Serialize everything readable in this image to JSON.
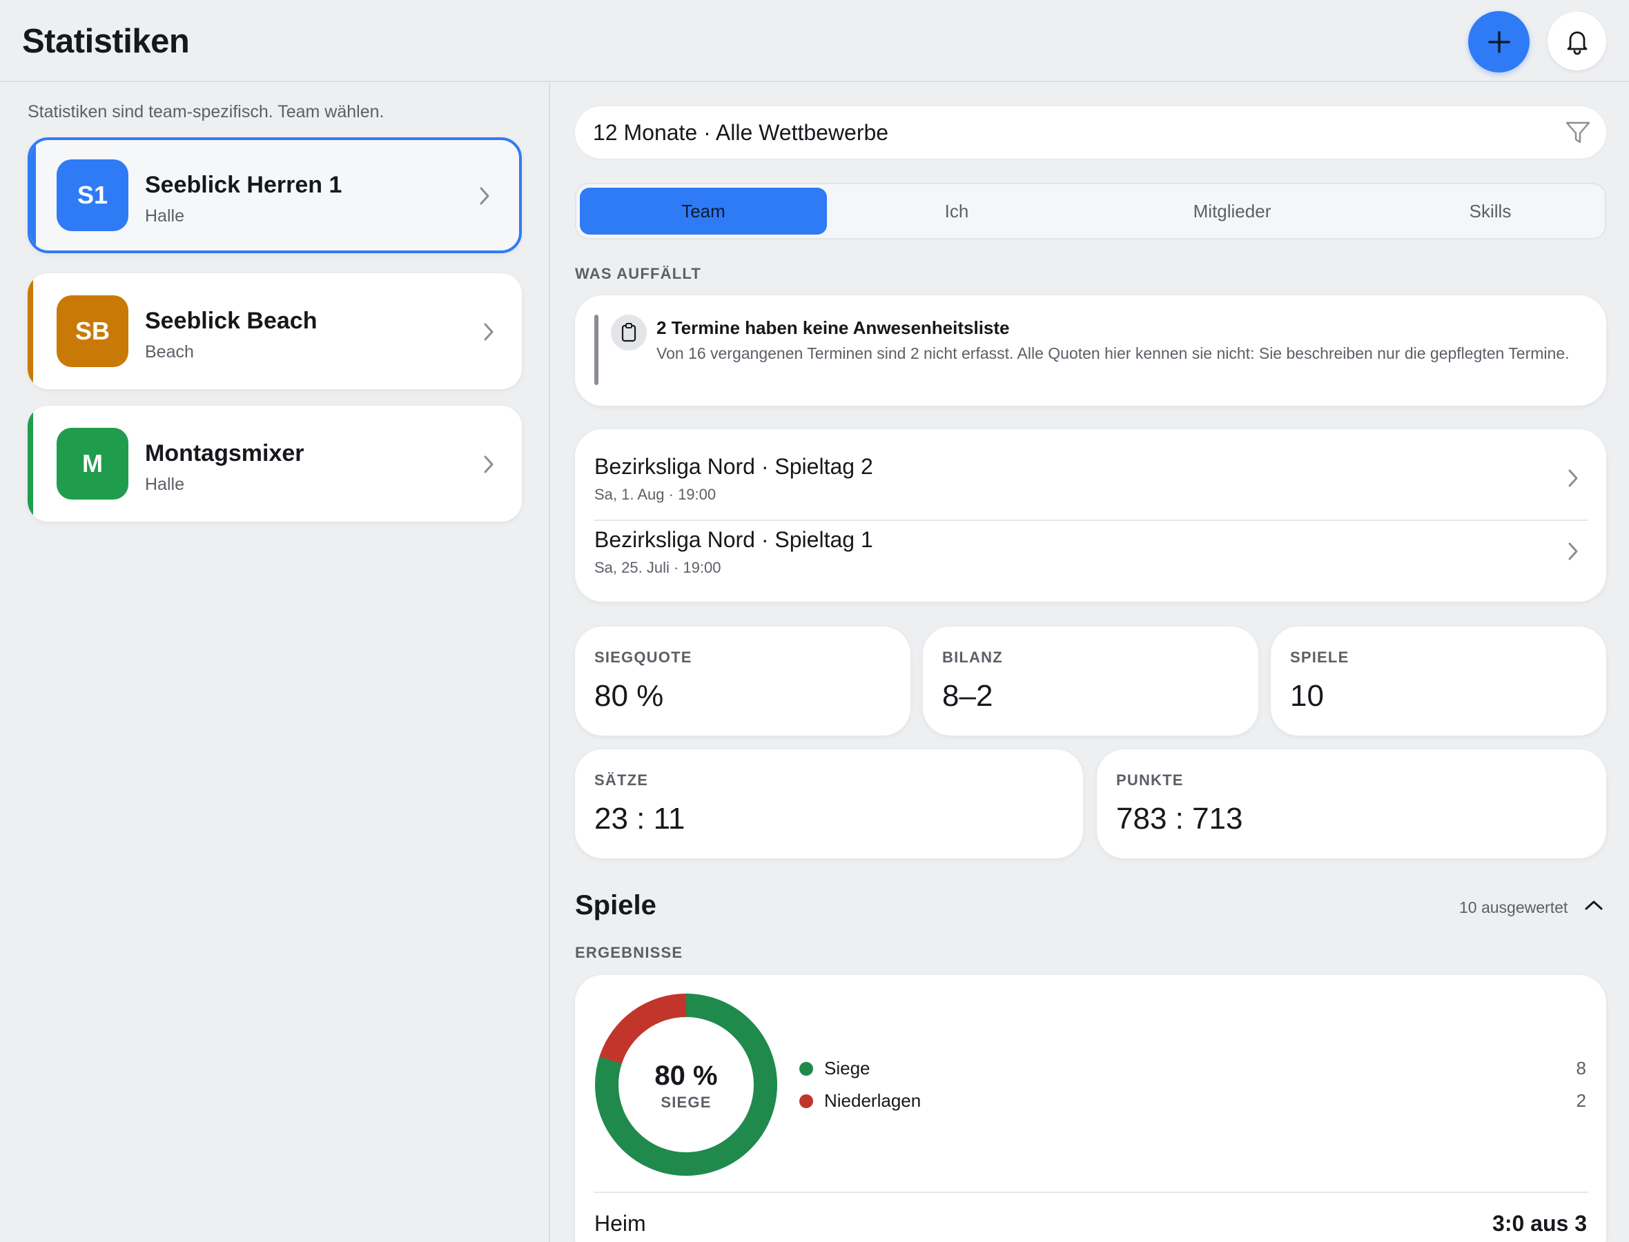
{
  "header": {
    "title": "Statistiken",
    "add_icon": "plus-icon",
    "bell_icon": "bell-icon",
    "accent": "#2f7bf6"
  },
  "sidebar": {
    "hint": "Statistiken sind team-spezifisch. Team wählen.",
    "teams": [
      {
        "initials": "S1",
        "name": "Seeblick Herren 1",
        "type": "Halle",
        "color": "#2f7bf6",
        "selected": true
      },
      {
        "initials": "SB",
        "name": "Seeblick Beach",
        "type": "Beach",
        "color": "#c97a06",
        "selected": false
      },
      {
        "initials": "M",
        "name": "Montagsmixer",
        "type": "Halle",
        "color": "#1f9d4c",
        "selected": false
      }
    ]
  },
  "filter": {
    "text": "12 Monate · Alle Wettbewerbe",
    "icon": "filter-icon"
  },
  "tabs": [
    {
      "label": "Team",
      "active": true
    },
    {
      "label": "Ich",
      "active": false
    },
    {
      "label": "Mitglieder",
      "active": false
    },
    {
      "label": "Skills",
      "active": false
    }
  ],
  "highlights": {
    "label": "WAS AUFFÄLLT",
    "notice": {
      "icon": "clipboard-icon",
      "title": "2 Termine haben keine Anwesenheitsliste",
      "text": "Von 16 vergangenen Terminen sind 2 nicht erfasst. Alle Quoten hier kennen sie nicht: Sie beschreiben nur die gepflegten Termine."
    }
  },
  "events": [
    {
      "name": "Bezirksliga Nord · Spieltag 2",
      "date": "Sa, 1. Aug · 19:00"
    },
    {
      "name": "Bezirksliga Nord · Spieltag 1",
      "date": "Sa, 25. Juli · 19:00"
    }
  ],
  "stats": {
    "siegquote": {
      "label": "SIEGQUOTE",
      "value": "80 %"
    },
    "bilanz": {
      "label": "BILANZ",
      "value": "8–2"
    },
    "spiele": {
      "label": "SPIELE",
      "value": "10"
    },
    "saetze": {
      "label": "SÄTZE",
      "value": "23 : 11"
    },
    "punkte": {
      "label": "PUNKTE",
      "value": "783 : 713"
    }
  },
  "games": {
    "title": "Spiele",
    "count": "10 ausgewertet",
    "results_label": "ERGEBNISSE",
    "donut": {
      "percent": "80 %",
      "sub": "SIEGE",
      "win_fraction": 0.8,
      "win_color": "#1f8a4c",
      "loss_color": "#c2352b"
    },
    "legend": [
      {
        "label": "Siege",
        "value": "8",
        "color": "#1f8a4c"
      },
      {
        "label": "Niederlagen",
        "value": "2",
        "color": "#c2352b"
      }
    ],
    "home": {
      "label": "Heim",
      "value": "3:0 aus 3"
    }
  }
}
